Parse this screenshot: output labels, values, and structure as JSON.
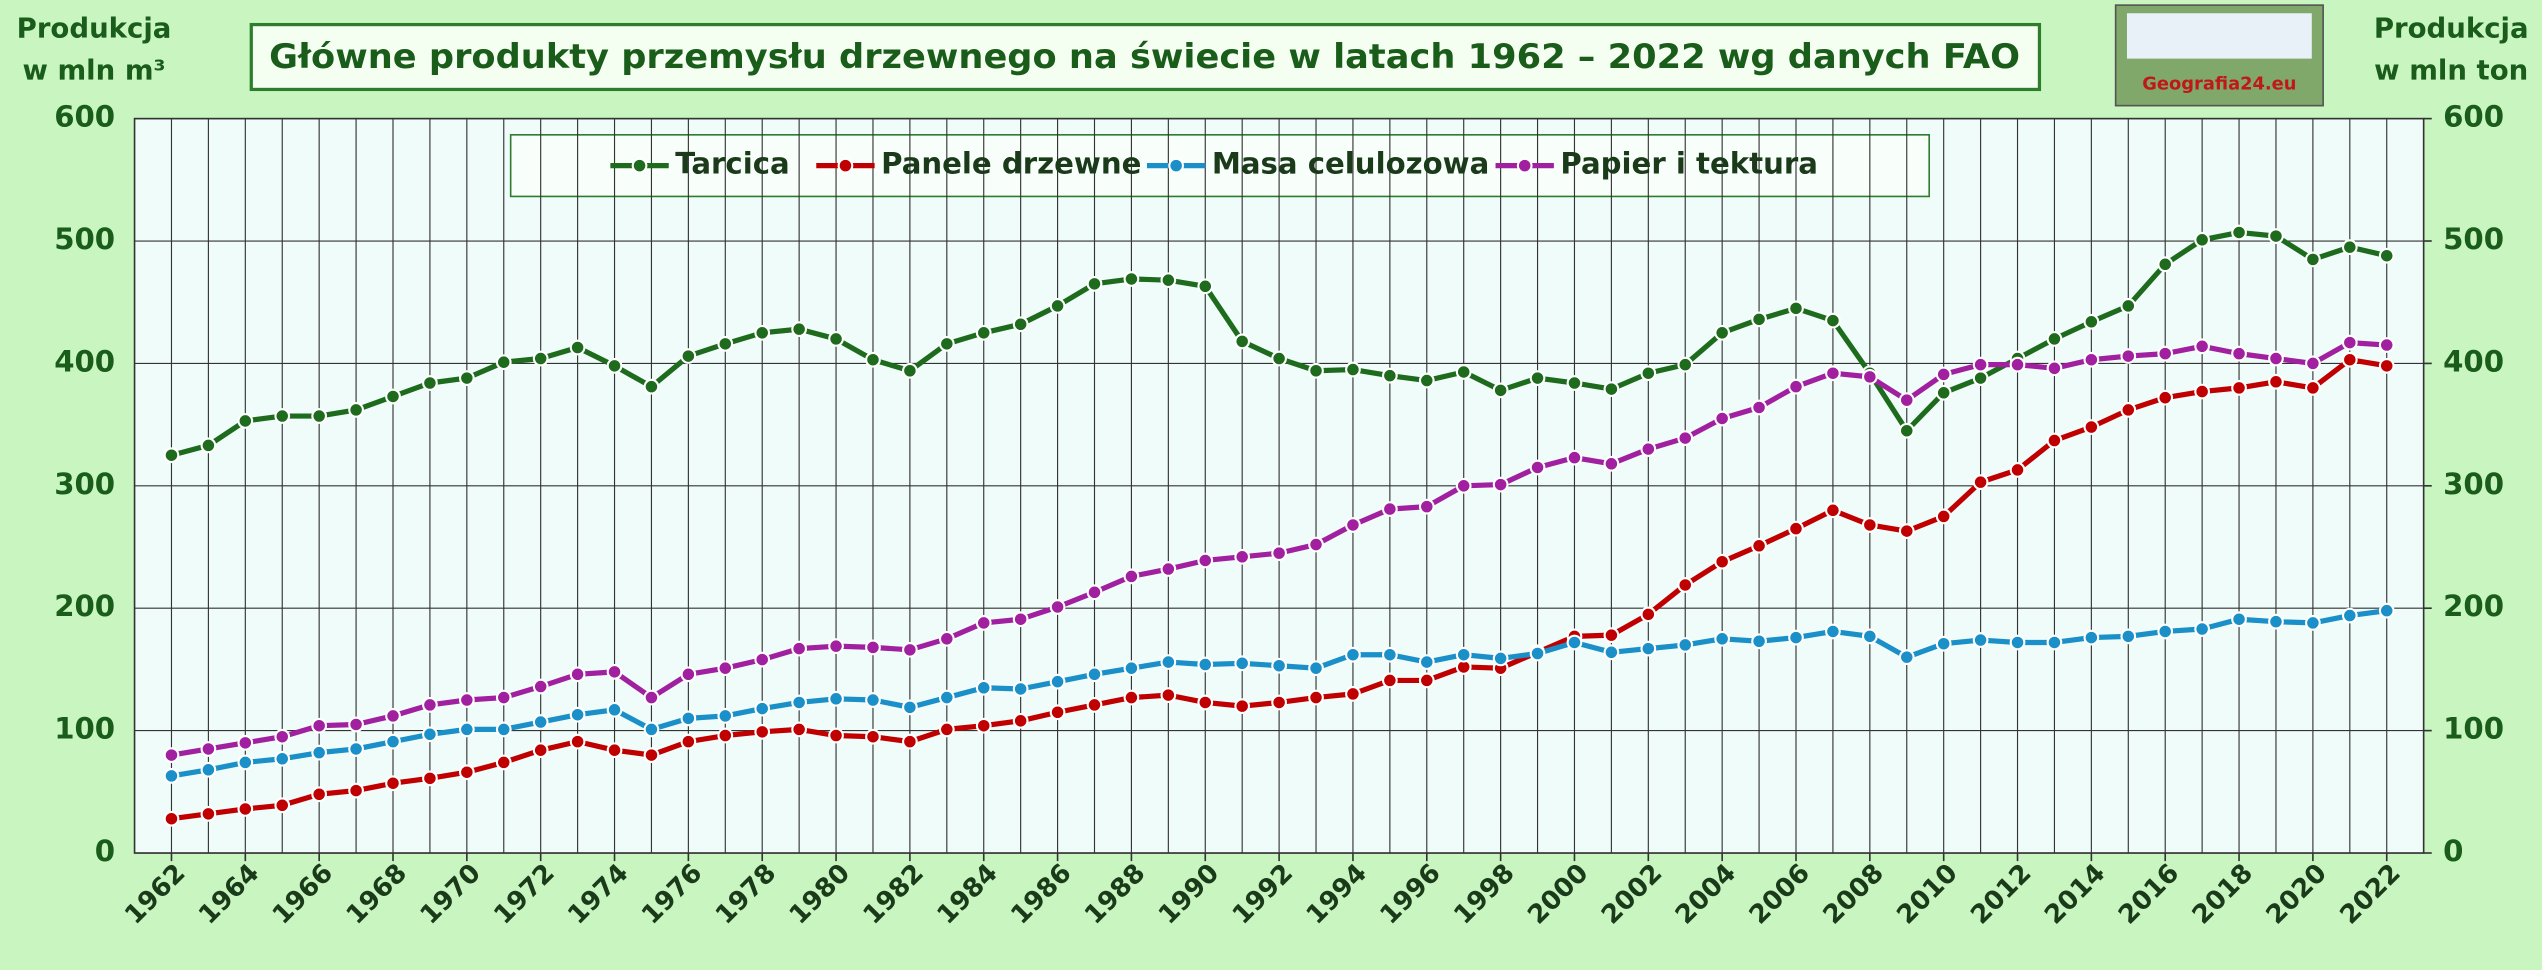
{
  "chart_data": {
    "type": "line",
    "title": "Główne produkty przemysłu drzewnego na świecie w latach 1962 – 2022 wg danych FAO",
    "y_label": [
      "Produkcja",
      "w mln m³"
    ],
    "y2_label": [
      "Produkcja",
      "w mln ton"
    ],
    "logo_text": "Geografia24.eu",
    "x": [
      1962,
      1963,
      1964,
      1965,
      1966,
      1967,
      1968,
      1969,
      1970,
      1971,
      1972,
      1973,
      1974,
      1975,
      1976,
      1977,
      1978,
      1979,
      1980,
      1981,
      1982,
      1983,
      1984,
      1985,
      1986,
      1987,
      1988,
      1989,
      1990,
      1991,
      1992,
      1993,
      1994,
      1995,
      1996,
      1997,
      1998,
      1999,
      2000,
      2001,
      2002,
      2003,
      2004,
      2005,
      2006,
      2007,
      2008,
      2009,
      2010,
      2011,
      2012,
      2013,
      2014,
      2015,
      2016,
      2017,
      2018,
      2019,
      2020,
      2021,
      2022
    ],
    "xlim": [
      1961,
      2023
    ],
    "xticks": [
      1962,
      1964,
      1966,
      1968,
      1970,
      1972,
      1974,
      1976,
      1978,
      1980,
      1982,
      1984,
      1986,
      1988,
      1990,
      1992,
      1994,
      1996,
      1998,
      2000,
      2002,
      2004,
      2006,
      2008,
      2010,
      2012,
      2014,
      2016,
      2018,
      2020,
      2022
    ],
    "ylim": [
      0,
      600
    ],
    "yticks": [
      0,
      100,
      200,
      300,
      400,
      500,
      600
    ],
    "y2lim": [
      0,
      600
    ],
    "y2ticks": [
      0,
      100,
      200,
      300,
      400,
      500,
      600
    ],
    "grid": true,
    "legend": "top",
    "series": [
      {
        "name": "Tarcica",
        "color": "#1e6b1e",
        "values": [
          325,
          333,
          353,
          357,
          357,
          362,
          373,
          384,
          388,
          401,
          404,
          413,
          398,
          381,
          406,
          416,
          425,
          428,
          420,
          403,
          394,
          416,
          425,
          432,
          447,
          465,
          469,
          468,
          463,
          418,
          404,
          394,
          395,
          390,
          386,
          393,
          378,
          388,
          384,
          379,
          392,
          399,
          425,
          436,
          445,
          435,
          392,
          345,
          376,
          388,
          404,
          420,
          434,
          447,
          481,
          501,
          507,
          504,
          485,
          495,
          488
        ]
      },
      {
        "name": "Panele drzewne",
        "color": "#c00000",
        "values": [
          28,
          32,
          36,
          39,
          48,
          51,
          57,
          61,
          66,
          74,
          84,
          91,
          84,
          80,
          91,
          96,
          99,
          101,
          96,
          95,
          91,
          101,
          104,
          108,
          115,
          121,
          127,
          129,
          123,
          120,
          123,
          127,
          130,
          141,
          141,
          152,
          151,
          164,
          177,
          178,
          195,
          219,
          238,
          251,
          265,
          280,
          268,
          263,
          275,
          303,
          313,
          337,
          348,
          362,
          372,
          377,
          380,
          385,
          380,
          403,
          398
        ]
      },
      {
        "name": "Masa celulozowa",
        "color": "#1a8fc8",
        "axis": "y2",
        "values": [
          63,
          68,
          74,
          77,
          82,
          85,
          91,
          97,
          101,
          101,
          107,
          113,
          117,
          101,
          110,
          112,
          118,
          123,
          126,
          125,
          119,
          127,
          135,
          134,
          140,
          146,
          151,
          156,
          154,
          155,
          153,
          151,
          162,
          162,
          156,
          162,
          159,
          163,
          172,
          164,
          167,
          170,
          175,
          173,
          176,
          181,
          177,
          160,
          171,
          174,
          172,
          172,
          176,
          177,
          181,
          183,
          191,
          189,
          188,
          194,
          198
        ]
      },
      {
        "name": "Papier i tektura",
        "color": "#a020a0",
        "axis": "y2",
        "values": [
          80,
          85,
          90,
          95,
          104,
          105,
          112,
          121,
          125,
          127,
          136,
          146,
          148,
          127,
          146,
          151,
          158,
          167,
          169,
          168,
          166,
          175,
          188,
          191,
          201,
          213,
          226,
          232,
          239,
          242,
          245,
          252,
          268,
          281,
          283,
          300,
          301,
          315,
          323,
          318,
          330,
          339,
          355,
          364,
          381,
          392,
          389,
          370,
          391,
          399,
          399,
          396,
          403,
          406,
          408,
          414,
          408,
          404,
          400,
          417,
          415
        ]
      }
    ]
  }
}
